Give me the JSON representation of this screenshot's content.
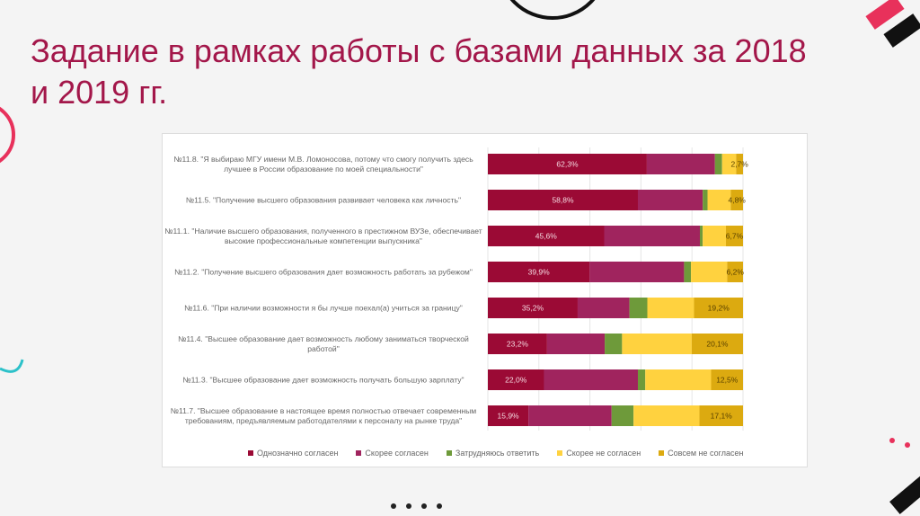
{
  "slide": {
    "title": "Задание в рамках работы с базами данных за 2018 и 2019 гг."
  },
  "chart_data": {
    "type": "bar",
    "orientation": "horizontal",
    "stacked": true,
    "xlim": [
      0,
      100
    ],
    "grid": true,
    "legend_position": "bottom",
    "categories": [
      "№11.8. \"Я выбираю МГУ имени М.В. Ломоносова, потому что смогу получить здесь лучшее в России образование по моей специальности\"",
      "№11.5. \"Получение высшего образования развивает человека как личность\"",
      "№11.1. \"Наличие высшего образования, полученного в престижном ВУЗе, обеспечивает высокие профессиональные компетенции выпускника\"",
      "№11.2. \"Получение высшего образования дает возможность работать за рубежом\"",
      "№11.6. \"При наличии возможности я бы лучше поехал(а) учиться за границу\"",
      "№11.4. \"Высшее образование дает возможность любому заниматься творческой работой\"",
      "№11.3. \"Высшее образование дает возможность получать большую зарплату\"",
      "№11.7. \"Высшее образование в настоящее время полностью отвечает современным требованиям, предъявляемым работодателями к персоналу на рынке труда\""
    ],
    "series": [
      {
        "name": "Однозначно согласен",
        "color": "#9b0a35",
        "values": [
          62.3,
          58.8,
          45.6,
          39.9,
          35.2,
          23.2,
          22.0,
          15.9
        ],
        "labels": [
          "62,3%",
          "58,8%",
          "45,6%",
          "39,9%",
          "35,2%",
          "23,2%",
          "22,0%",
          "15,9%"
        ]
      },
      {
        "name": "Скорее согласен",
        "color": "#a0245e",
        "values": [
          26.7,
          25.4,
          37.5,
          37.0,
          20.3,
          22.6,
          36.8,
          32.6
        ]
      },
      {
        "name": "Затрудняюсь ответить",
        "color": "#6e9a3a",
        "values": [
          2.8,
          1.9,
          1.1,
          2.7,
          7.0,
          6.8,
          2.9,
          8.6
        ]
      },
      {
        "name": "Скорее не согласен",
        "color": "#ffd23f",
        "values": [
          5.5,
          9.1,
          9.1,
          14.2,
          18.3,
          27.3,
          25.8,
          25.8
        ]
      },
      {
        "name": "Совсем не согласен",
        "color": "#dcaa10",
        "values": [
          2.7,
          4.8,
          6.7,
          6.2,
          19.2,
          20.1,
          12.5,
          17.1
        ],
        "labels": [
          "2,7%",
          "4,8%",
          "6,7%",
          "6,2%",
          "19,2%",
          "20,1%",
          "12,5%",
          "17,1%"
        ]
      }
    ]
  }
}
